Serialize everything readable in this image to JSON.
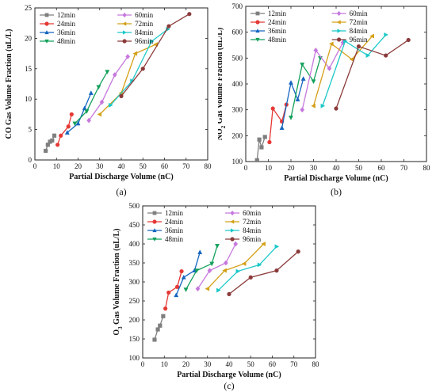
{
  "panels": [
    {
      "id": "a",
      "label": "(a)"
    },
    {
      "id": "b",
      "label": "(b)"
    },
    {
      "id": "c",
      "label": "(c)"
    }
  ],
  "chart_data": [
    {
      "type": "line",
      "panel": "(a)",
      "xlabel": "Partial Discharge Volume (nC)",
      "ylabel": "CO Gas Volume Fraction (uL/L)",
      "xlim": [
        0,
        80
      ],
      "ylim": [
        0,
        25
      ],
      "xticks": [
        0,
        10,
        20,
        30,
        40,
        50,
        60,
        70,
        80
      ],
      "yticks": [
        0,
        5,
        10,
        15,
        20,
        25
      ],
      "legend_position": "top-left",
      "grid": false,
      "series": [
        {
          "name": "12min",
          "color": "#7f7f7f",
          "marker": "square",
          "x": [
            5,
            6,
            7,
            8,
            9
          ],
          "y": [
            1.5,
            2.5,
            3,
            3.2,
            4
          ]
        },
        {
          "name": "24min",
          "color": "#e53935",
          "marker": "circle",
          "x": [
            10.5,
            12,
            15.5,
            17
          ],
          "y": [
            2.5,
            4,
            5.5,
            7.5
          ]
        },
        {
          "name": "36min",
          "color": "#1565c0",
          "marker": "triangle-up",
          "x": [
            15,
            20,
            23,
            26
          ],
          "y": [
            4.5,
            6,
            8.5,
            11
          ]
        },
        {
          "name": "48min",
          "color": "#12a05a",
          "marker": "triangle-down",
          "x": [
            18.5,
            24,
            29.5,
            33.5
          ],
          "y": [
            6,
            8,
            12,
            14.5
          ]
        },
        {
          "name": "60min",
          "color": "#c678dd",
          "marker": "diamond",
          "x": [
            25,
            31,
            37,
            43
          ],
          "y": [
            6.5,
            9.5,
            14,
            17
          ]
        },
        {
          "name": "72min",
          "color": "#d4a017",
          "marker": "triangle-left",
          "x": [
            30,
            40,
            46.5,
            56
          ],
          "y": [
            7.5,
            11,
            17.5,
            19
          ]
        },
        {
          "name": "84min",
          "color": "#1cc8c8",
          "marker": "triangle-right",
          "x": [
            35,
            45,
            54,
            61.5
          ],
          "y": [
            9,
            13,
            19.5,
            21.5
          ]
        },
        {
          "name": "96min",
          "color": "#8b3a3a",
          "marker": "circle",
          "x": [
            40,
            50,
            62,
            71.5
          ],
          "y": [
            10.5,
            15,
            22,
            24
          ]
        }
      ]
    },
    {
      "type": "line",
      "panel": "(b)",
      "xlabel": "Partial Discharge Volume (nC)",
      "ylabel": "NO2 Gas Volume Fraction (uL/L)",
      "xlim": [
        0,
        80
      ],
      "ylim": [
        100,
        700
      ],
      "xticks": [
        0,
        10,
        20,
        30,
        40,
        50,
        60,
        70,
        80
      ],
      "yticks": [
        100,
        200,
        300,
        400,
        500,
        600,
        700
      ],
      "legend_position": "top-left",
      "grid": false,
      "series": [
        {
          "name": "12min",
          "color": "#7f7f7f",
          "marker": "square",
          "x": [
            5,
            6,
            7,
            8.5
          ],
          "y": [
            105,
            185,
            155,
            195
          ]
        },
        {
          "name": "24min",
          "color": "#e53935",
          "marker": "circle",
          "x": [
            10.5,
            12,
            16,
            18
          ],
          "y": [
            175,
            305,
            255,
            320
          ]
        },
        {
          "name": "36min",
          "color": "#1565c0",
          "marker": "triangle-up",
          "x": [
            16,
            20,
            23,
            25.5
          ],
          "y": [
            230,
            405,
            340,
            420
          ]
        },
        {
          "name": "48min",
          "color": "#12a05a",
          "marker": "triangle-down",
          "x": [
            20,
            25,
            30,
            33
          ],
          "y": [
            270,
            475,
            410,
            500
          ]
        },
        {
          "name": "60min",
          "color": "#c678dd",
          "marker": "diamond",
          "x": [
            25,
            31,
            37,
            43
          ],
          "y": [
            300,
            530,
            460,
            560
          ]
        },
        {
          "name": "72min",
          "color": "#d4a017",
          "marker": "triangle-left",
          "x": [
            30,
            38,
            47,
            56
          ],
          "y": [
            315,
            555,
            495,
            585
          ]
        },
        {
          "name": "84min",
          "color": "#1cc8c8",
          "marker": "triangle-right",
          "x": [
            34,
            44,
            54,
            62
          ],
          "y": [
            315,
            565,
            510,
            590
          ]
        },
        {
          "name": "96min",
          "color": "#8b3a3a",
          "marker": "circle",
          "x": [
            40,
            50,
            62,
            72
          ],
          "y": [
            305,
            545,
            510,
            570
          ]
        }
      ]
    },
    {
      "type": "line",
      "panel": "(c)",
      "xlabel": "Partial Discharge Volume (nC)",
      "ylabel": "O3 Gas Volume Fraction (uL/L)",
      "xlim": [
        0,
        80
      ],
      "ylim": [
        100,
        500
      ],
      "xticks": [
        0,
        10,
        20,
        30,
        40,
        50,
        60,
        70,
        80
      ],
      "yticks": [
        100,
        150,
        200,
        250,
        300,
        350,
        400,
        450,
        500
      ],
      "legend_position": "top-left",
      "grid": false,
      "series": [
        {
          "name": "12min",
          "color": "#7f7f7f",
          "marker": "square",
          "x": [
            5.5,
            7,
            8,
            9.5
          ],
          "y": [
            148,
            175,
            185,
            210
          ]
        },
        {
          "name": "24min",
          "color": "#e53935",
          "marker": "circle",
          "x": [
            10.5,
            12,
            16,
            18
          ],
          "y": [
            230,
            272,
            287,
            328
          ]
        },
        {
          "name": "36min",
          "color": "#1565c0",
          "marker": "triangle-up",
          "x": [
            15.5,
            19,
            24,
            26.5
          ],
          "y": [
            265,
            312,
            330,
            378
          ]
        },
        {
          "name": "48min",
          "color": "#12a05a",
          "marker": "triangle-down",
          "x": [
            20,
            25,
            32,
            34.5
          ],
          "y": [
            280,
            330,
            348,
            395
          ]
        },
        {
          "name": "60min",
          "color": "#c678dd",
          "marker": "diamond",
          "x": [
            25.5,
            31,
            38.5,
            43
          ],
          "y": [
            282,
            330,
            350,
            400
          ]
        },
        {
          "name": "72min",
          "color": "#d4a017",
          "marker": "triangle-left",
          "x": [
            30,
            38,
            47,
            56
          ],
          "y": [
            282,
            330,
            348,
            400
          ]
        },
        {
          "name": "84min",
          "color": "#1cc8c8",
          "marker": "triangle-right",
          "x": [
            35,
            44,
            54,
            62
          ],
          "y": [
            278,
            328,
            345,
            393
          ]
        },
        {
          "name": "96min",
          "color": "#8b3a3a",
          "marker": "circle",
          "x": [
            40,
            50,
            62,
            72
          ],
          "y": [
            268,
            312,
            330,
            380
          ]
        }
      ]
    }
  ]
}
